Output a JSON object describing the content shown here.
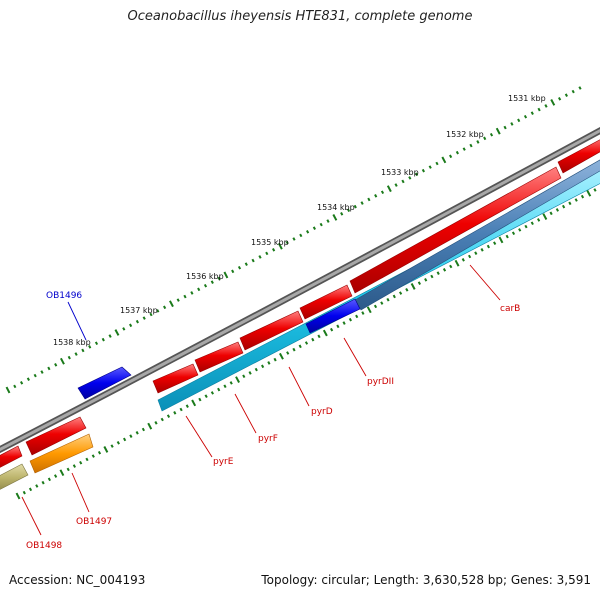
{
  "title": "Oceanobacillus iheyensis HTE831, complete genome",
  "footer": {
    "accession": "Accession: NC_004193",
    "topology": "Topology: circular; Length: 3,630,528 bp; Genes: 3,591"
  },
  "tick_labels": [
    "1531 kbp",
    "1532 kbp",
    "1533 kbp",
    "1534 kbp",
    "1535 kbp",
    "1536 kbp",
    "1537 kbp",
    "1538 kbp"
  ],
  "genes": [
    {
      "id": "carB",
      "label": "carB",
      "color": "#cc0000"
    },
    {
      "id": "pyrDII",
      "label": "pyrDII",
      "color": "#cc0000"
    },
    {
      "id": "pyrD",
      "label": "pyrD",
      "color": "#cc0000"
    },
    {
      "id": "pyrF",
      "label": "pyrF",
      "color": "#cc0000"
    },
    {
      "id": "pyrE",
      "label": "pyrE",
      "color": "#cc0000"
    },
    {
      "id": "OB1496",
      "label": "OB1496",
      "color": "#0000cc"
    },
    {
      "id": "OB1497",
      "label": "OB1497",
      "color": "#cc0000"
    },
    {
      "id": "OB1498",
      "label": "OB1498",
      "color": "#cc0000"
    }
  ],
  "colors": {
    "backbone": "#8a8a8a",
    "tick": "#1a7a1a",
    "gene_red": "#ee0000",
    "gene_blue": "#0000ee",
    "gene_cyan": "#22ccee",
    "gene_steel": "#4a7fb5",
    "gene_orange": "#ff9900",
    "gene_olive": "#bbb36b"
  }
}
